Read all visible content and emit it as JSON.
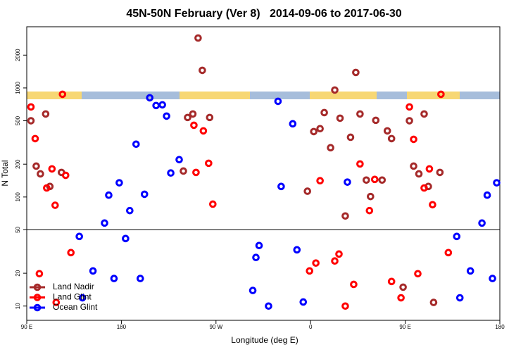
{
  "chart_data": {
    "type": "scatter",
    "title": "45N-50N February (Ver 8)   2014-09-06 to 2017-06-30",
    "x_label": "Longitude (deg E)",
    "y_label": "N Total",
    "log_y": true,
    "hline": 50,
    "legend": "bottom-left",
    "xlim": [
      90,
      540
    ],
    "ylim": [
      7.4,
      3640
    ],
    "xticks": [
      {
        "value": 90,
        "label": "90 E"
      },
      180,
      {
        "value": 270,
        "label": "90 W"
      },
      {
        "value": 360,
        "label": "0"
      },
      {
        "value": 450,
        "label": "90 E"
      },
      {
        "value": 540,
        "label": "180"
      }
    ],
    "yticks": [
      10,
      20,
      50,
      100,
      200,
      500,
      1000,
      2000
    ],
    "series": [
      {
        "name": "Land Nadir",
        "color": "#a52a2a",
        "x": [
          94,
          99,
          103,
          108,
          112,
          123,
          253,
          257,
          243,
          248,
          264,
          239,
          357,
          363,
          369,
          373,
          379,
          383,
          388,
          393,
          398,
          403,
          407,
          413,
          417,
          422,
          428,
          433,
          437,
          448,
          454,
          458,
          463,
          468,
          472,
          477,
          483
        ],
        "values": [
          500,
          192,
          163,
          577,
          125,
          168,
          2870,
          1450,
          536,
          577,
          536,
          173,
          113,
          398,
          423,
          594,
          283,
          957,
          528,
          67,
          353,
          1387,
          577,
          143,
          101,
          505,
          143,
          404,
          343,
          14.9,
          500,
          192,
          163,
          577,
          125,
          10.8,
          168
        ]
      },
      {
        "name": "Land Glint",
        "color": "#ff0000",
        "x": [
          94,
          98,
          102,
          109,
          114,
          117,
          118,
          124,
          127,
          132,
          249,
          251,
          258,
          263,
          267,
          359,
          365,
          369,
          383,
          387,
          393,
          401,
          407,
          416,
          421,
          437,
          446,
          454,
          458,
          462,
          468,
          473,
          476,
          484,
          491
        ],
        "values": [
          670,
          343,
          19.8,
          121,
          181,
          84,
          10.8,
          875,
          158,
          30.9,
          455,
          168,
          404,
          204,
          86,
          21,
          24.8,
          141,
          25.9,
          30,
          10,
          15.8,
          201,
          75,
          145,
          16.8,
          11.9,
          670,
          338,
          19.8,
          121,
          181,
          85,
          875,
          30.9
        ]
      },
      {
        "name": "Ocean Glint",
        "color": "#0000ff",
        "x": [
          140,
          143,
          153,
          164,
          168,
          173,
          178,
          184,
          188,
          194,
          198,
          202,
          207,
          213,
          219,
          223,
          227,
          235,
          305,
          308,
          311,
          320,
          329,
          332,
          343,
          347,
          353,
          395,
          499,
          502,
          512,
          523,
          528,
          533,
          537
        ],
        "values": [
          43.5,
          11.9,
          21,
          57.7,
          104,
          17.9,
          135,
          41.6,
          75,
          305,
          17.9,
          106,
          812,
          690,
          700,
          552,
          166,
          220,
          13.9,
          27.9,
          35.9,
          10,
          754,
          125,
          469,
          32.8,
          10.9,
          137,
          43.5,
          11.9,
          21,
          57.7,
          104,
          17.9,
          135
        ]
      }
    ]
  }
}
